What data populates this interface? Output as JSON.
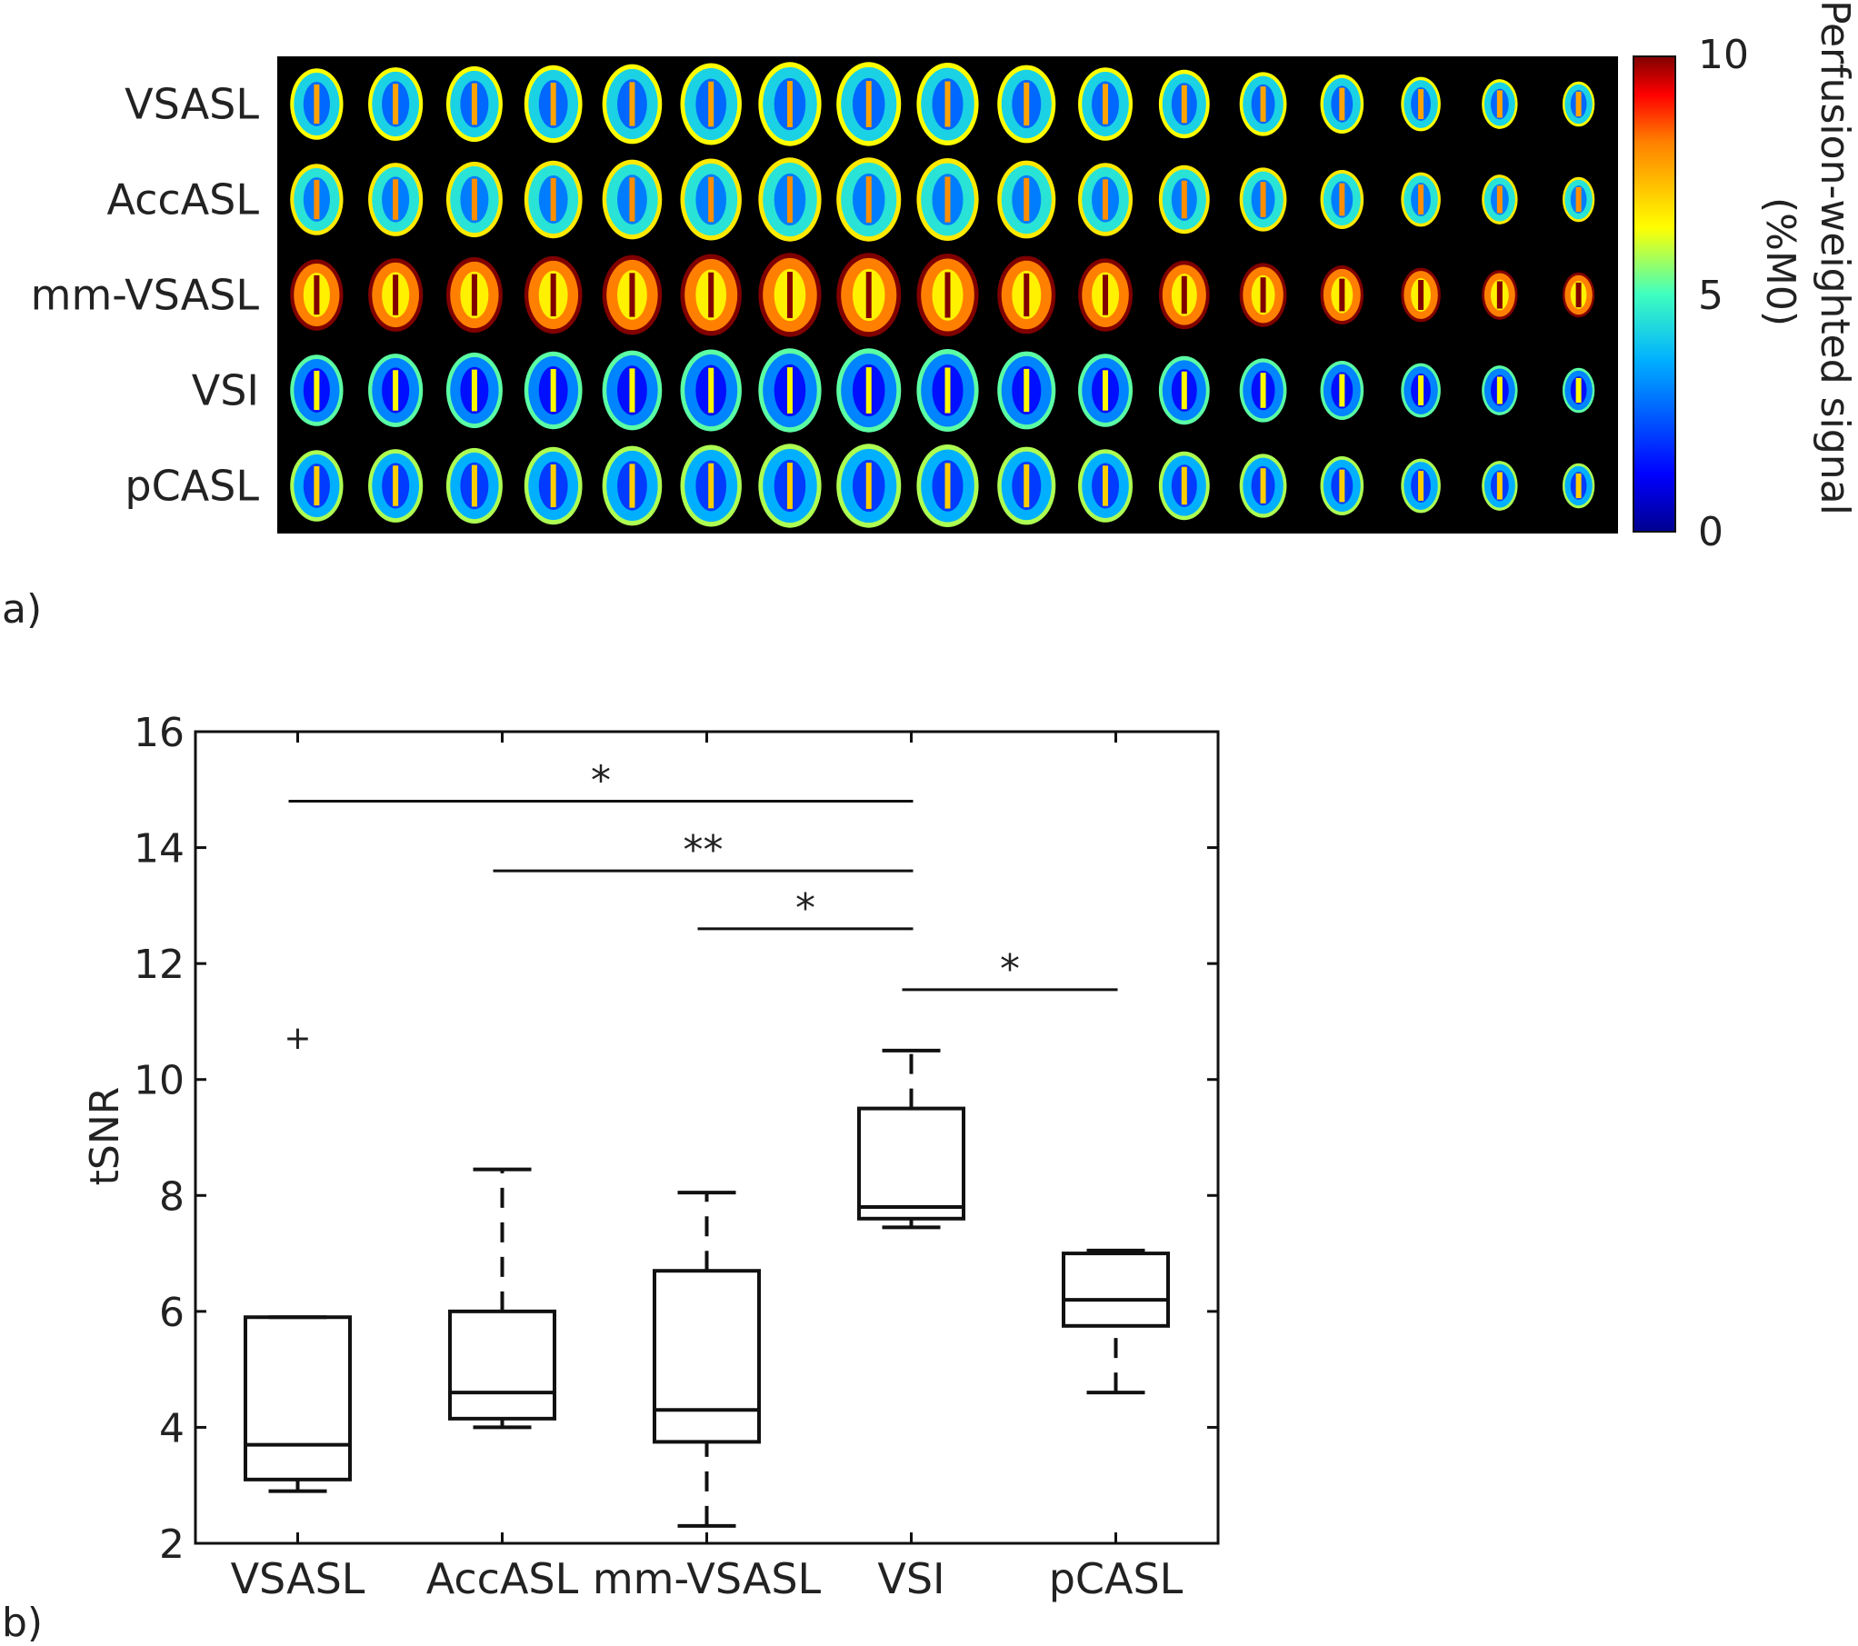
{
  "panel_a": {
    "label": "a)",
    "rows": [
      "VSASL",
      "AccASL",
      "mm-VSASL",
      "VSI",
      "pCASL"
    ],
    "slices_per_row": 17,
    "row_intensity": [
      0.42,
      0.45,
      0.82,
      0.3,
      0.36
    ],
    "colorbar": {
      "title_line1": "Perfusion-weighted signal",
      "title_line2": "(%M0)",
      "ticks": [
        "10",
        "5",
        "0"
      ],
      "min": 0,
      "max": 10,
      "colormap": [
        "#00008f",
        "#0000ff",
        "#00b0ff",
        "#40ffbf",
        "#ffff00",
        "#ff8000",
        "#ff0000",
        "#800000"
      ]
    }
  },
  "panel_b": {
    "label": "b)"
  },
  "chart_data": {
    "type": "box",
    "categories": [
      "VSASL",
      "AccASL",
      "mm-VSASL",
      "VSI",
      "pCASL"
    ],
    "ylabel": "tSNR",
    "xlabel": "",
    "ylim": [
      2,
      16
    ],
    "yticks": [
      "2",
      "4",
      "6",
      "8",
      "10",
      "12",
      "14",
      "16"
    ],
    "boxes": [
      {
        "name": "VSASL",
        "whisker_low": 2.9,
        "q1": 3.1,
        "median": 3.7,
        "q3": 5.9,
        "whisker_high": 5.9
      },
      {
        "name": "AccASL",
        "whisker_low": 4.0,
        "q1": 4.15,
        "median": 4.6,
        "q3": 6.0,
        "whisker_high": 8.45
      },
      {
        "name": "mm-VSASL",
        "whisker_low": 2.3,
        "q1": 3.75,
        "median": 4.3,
        "q3": 6.7,
        "whisker_high": 8.05
      },
      {
        "name": "VSI",
        "whisker_low": 7.45,
        "q1": 7.6,
        "median": 7.8,
        "q3": 9.5,
        "whisker_high": 10.5
      },
      {
        "name": "pCASL",
        "whisker_low": 4.6,
        "q1": 5.75,
        "median": 6.2,
        "q3": 7.0,
        "whisker_high": 7.05
      }
    ],
    "outliers": [
      {
        "category": "VSASL",
        "value": 10.7,
        "marker": "+"
      }
    ],
    "significance": [
      {
        "from": "VSASL",
        "to": "VSI",
        "y": 14.8,
        "label": "*"
      },
      {
        "from": "AccASL",
        "to": "VSI",
        "y": 13.6,
        "label": "**"
      },
      {
        "from": "mm-VSASL",
        "to": "VSI",
        "y": 12.6,
        "label": "*"
      },
      {
        "from": "VSI",
        "to": "pCASL",
        "y": 11.55,
        "label": "*"
      }
    ]
  }
}
